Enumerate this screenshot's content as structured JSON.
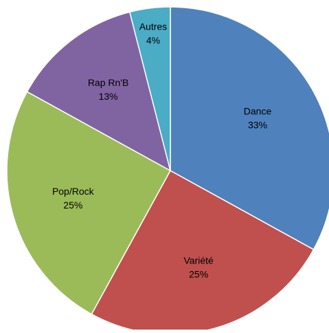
{
  "chart_data": {
    "type": "pie",
    "categories": [
      "Dance",
      "Variété",
      "Pop/Rock",
      "Rap Rn'B",
      "Autres"
    ],
    "values": [
      33,
      25,
      25,
      13,
      4
    ],
    "value_labels": [
      "33%",
      "25%",
      "25%",
      "13%",
      "4%"
    ],
    "colors": [
      "#4f81bd",
      "#c0504d",
      "#9bbb59",
      "#8064a2",
      "#4bacc6"
    ]
  }
}
